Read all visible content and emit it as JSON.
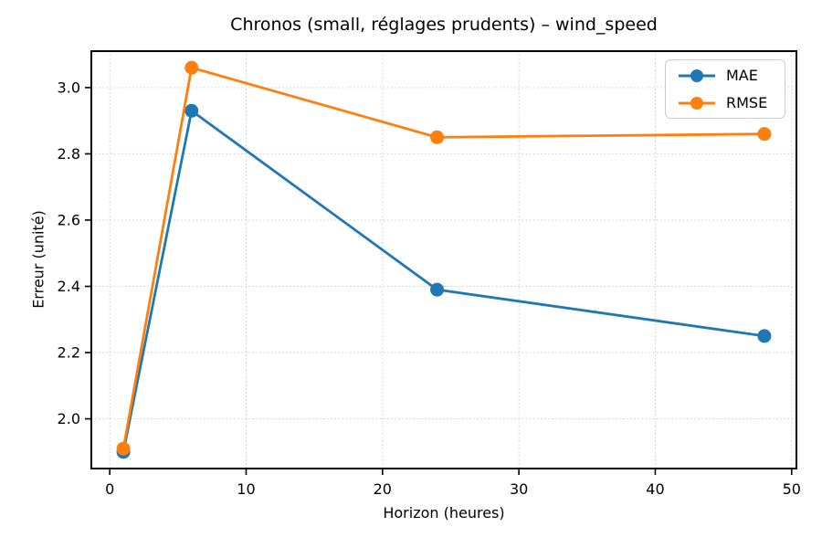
{
  "chart_data": {
    "type": "line",
    "title": "Chronos (small, réglages prudents) – wind_speed",
    "xlabel": "Horizon (heures)",
    "ylabel": "Erreur (unité)",
    "x": [
      1,
      6,
      24,
      48
    ],
    "series": [
      {
        "name": "MAE",
        "color": "#1f77b4",
        "values": [
          1.9,
          2.93,
          2.39,
          2.25
        ]
      },
      {
        "name": "RMSE",
        "color": "#ff7f0e",
        "values": [
          1.91,
          3.06,
          2.85,
          2.86
        ]
      }
    ],
    "xticks": [
      0,
      10,
      20,
      30,
      40,
      50
    ],
    "yticks": [
      2.0,
      2.2,
      2.4,
      2.6,
      2.8,
      3.0
    ],
    "xlim": [
      -1.35,
      50.35
    ],
    "ylim": [
      1.85,
      3.11
    ],
    "grid": true,
    "grid_style": "dotted",
    "legend_position": "upper right",
    "marker": "circle",
    "spine_color": "#000000",
    "grid_color": "#cccccc"
  }
}
